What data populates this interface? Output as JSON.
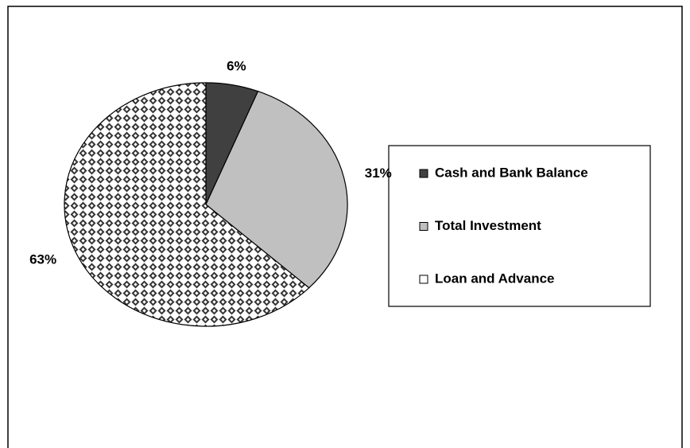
{
  "chart_data": {
    "type": "pie",
    "categories": [
      "Cash and Bank Balance",
      "Total Investment",
      "Loan and Advance"
    ],
    "values": [
      6,
      31,
      63
    ],
    "value_labels": [
      "6%",
      "31%",
      "63%"
    ],
    "colors": [
      "#404040",
      "#c0c0c0",
      "#ffffff"
    ],
    "patterns": [
      null,
      null,
      "diamond-checker"
    ],
    "legend": "right"
  }
}
